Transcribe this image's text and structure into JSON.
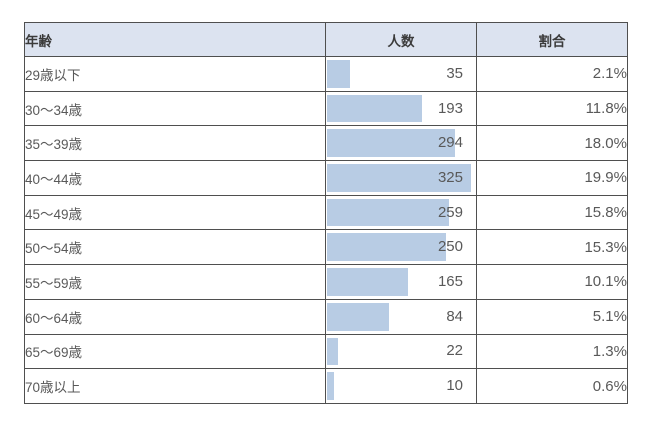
{
  "colors": {
    "header_bg": "#dce3f0",
    "bar_fill": "#b8cce4",
    "grid_border": "#4f4f4f",
    "header_text": "#3b3b3b",
    "body_text": "#595959",
    "page_bg": "#ffffff"
  },
  "table": {
    "headers": {
      "age": "年齢",
      "count": "人数",
      "ratio": "割合"
    },
    "rows": [
      {
        "age": "29歳以下",
        "count": "35",
        "ratio": "2.1%",
        "bar_pct": 15
      },
      {
        "age": "30〜34歳",
        "count": "193",
        "ratio": "11.8%",
        "bar_pct": 63
      },
      {
        "age": "35〜39歳",
        "count": "294",
        "ratio": "18.0%",
        "bar_pct": 85
      },
      {
        "age": "40〜44歳",
        "count": "325",
        "ratio": "19.9%",
        "bar_pct": 96
      },
      {
        "age": "45〜49歳",
        "count": "259",
        "ratio": "15.8%",
        "bar_pct": 81
      },
      {
        "age": "50〜54歳",
        "count": "250",
        "ratio": "15.3%",
        "bar_pct": 79
      },
      {
        "age": "55〜59歳",
        "count": "165",
        "ratio": "10.1%",
        "bar_pct": 54
      },
      {
        "age": "60〜64歳",
        "count": "84",
        "ratio": "5.1%",
        "bar_pct": 41
      },
      {
        "age": "65〜69歳",
        "count": "22",
        "ratio": "1.3%",
        "bar_pct": 7.5
      },
      {
        "age": "70歳以上",
        "count": "10",
        "ratio": "0.6%",
        "bar_pct": 4.5
      }
    ]
  },
  "chart_data": {
    "type": "table",
    "title": "",
    "columns": [
      "年齢",
      "人数",
      "割合"
    ],
    "categories": [
      "29歳以下",
      "30〜34歳",
      "35〜39歳",
      "40〜44歳",
      "45〜49歳",
      "50〜54歳",
      "55〜59歳",
      "60〜64歳",
      "65〜69歳",
      "70歳以上"
    ],
    "series": [
      {
        "name": "人数",
        "values": [
          35,
          193,
          294,
          325,
          259,
          250,
          165,
          84,
          22,
          10
        ]
      },
      {
        "name": "割合",
        "values": [
          "2.1%",
          "11.8%",
          "18.0%",
          "19.9%",
          "15.8%",
          "15.3%",
          "10.1%",
          "5.1%",
          "1.3%",
          "0.6%"
        ]
      }
    ],
    "in_cell_bars": {
      "column": "人数",
      "type": "bar",
      "orientation": "horizontal",
      "color": "#b8cce4",
      "scale_max": 325
    },
    "legend": "none",
    "grid": "table gridlines on"
  }
}
